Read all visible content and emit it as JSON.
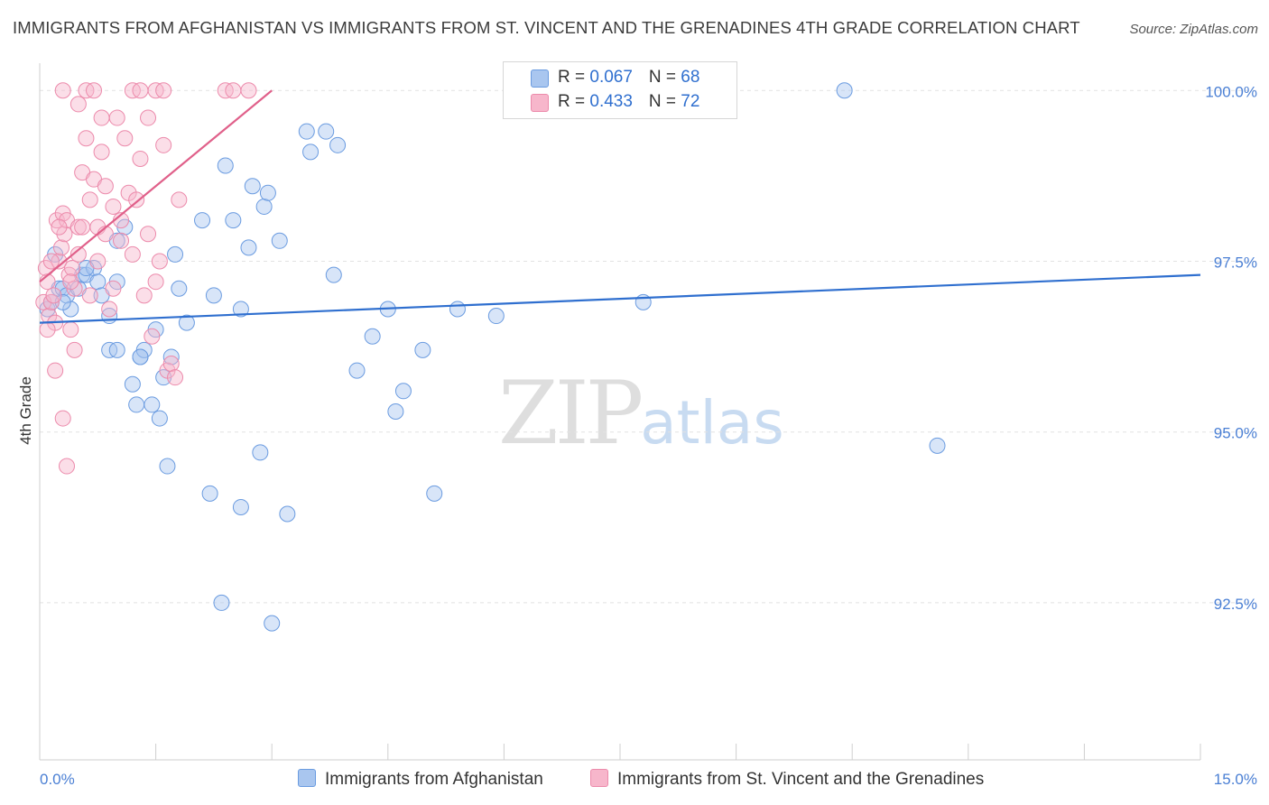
{
  "title": "IMMIGRANTS FROM AFGHANISTAN VS IMMIGRANTS FROM ST. VINCENT AND THE GRENADINES 4TH GRADE CORRELATION CHART",
  "source": "Source: ZipAtlas.com",
  "watermark": {
    "zip": "ZIP",
    "atlas": "atlas"
  },
  "legend": {
    "rows": [
      {
        "r_label": "R = ",
        "r_value": "0.067",
        "n_label": "N = ",
        "n_value": "68"
      },
      {
        "r_label": "R = ",
        "r_value": "0.433",
        "n_label": "N = ",
        "n_value": "72"
      }
    ]
  },
  "bottom_legend": {
    "series1": "Immigrants from Afghanistan",
    "series2": "Immigrants from St. Vincent and the Grenadines"
  },
  "colors": {
    "blue_fill": "#a9c6ef",
    "blue_stroke": "#6a9be0",
    "blue_line": "#2f6fcf",
    "pink_fill": "#f7b6cb",
    "pink_stroke": "#ec8aab",
    "pink_line": "#e0608a",
    "grid": "#e2e2e2"
  },
  "chart_data": {
    "type": "scatter",
    "title": "IMMIGRANTS FROM AFGHANISTAN VS IMMIGRANTS FROM ST. VINCENT AND THE GRENADINES 4TH GRADE CORRELATION CHART",
    "xlabel": "",
    "ylabel": "4th Grade",
    "xlim": [
      0,
      15
    ],
    "ylim": [
      90.2,
      100.4
    ],
    "x_tick_labels": [
      "0.0%",
      "15.0%"
    ],
    "y_ticks": [
      92.5,
      95.0,
      97.5,
      100.0
    ],
    "y_tick_labels": [
      "92.5%",
      "95.0%",
      "97.5%",
      "100.0%"
    ],
    "grid": true,
    "legend_position": "top-center",
    "series": [
      {
        "name": "Immigrants from Afghanistan",
        "color": "#a9c6ef",
        "trend": {
          "x": [
            0,
            15
          ],
          "y": [
            96.6,
            97.3
          ]
        },
        "points": [
          [
            0.1,
            96.8
          ],
          [
            0.15,
            96.9
          ],
          [
            0.2,
            97.6
          ],
          [
            0.25,
            97.1
          ],
          [
            0.3,
            97.1
          ],
          [
            0.35,
            97.0
          ],
          [
            0.4,
            96.8
          ],
          [
            0.5,
            97.1
          ],
          [
            0.55,
            97.3
          ],
          [
            0.6,
            97.3
          ],
          [
            0.7,
            97.4
          ],
          [
            0.75,
            97.2
          ],
          [
            0.8,
            97.0
          ],
          [
            1.0,
            97.8
          ],
          [
            1.1,
            98.0
          ],
          [
            0.9,
            96.2
          ],
          [
            1.0,
            96.2
          ],
          [
            1.2,
            95.7
          ],
          [
            1.25,
            95.4
          ],
          [
            1.3,
            96.1
          ],
          [
            1.35,
            96.2
          ],
          [
            1.45,
            95.4
          ],
          [
            1.5,
            96.5
          ],
          [
            1.55,
            95.2
          ],
          [
            1.6,
            95.8
          ],
          [
            1.65,
            94.5
          ],
          [
            1.7,
            96.1
          ],
          [
            1.75,
            97.6
          ],
          [
            1.8,
            97.1
          ],
          [
            1.9,
            96.6
          ],
          [
            2.1,
            98.1
          ],
          [
            2.2,
            94.1
          ],
          [
            2.25,
            97.0
          ],
          [
            2.4,
            98.9
          ],
          [
            2.5,
            98.1
          ],
          [
            2.6,
            96.8
          ],
          [
            2.7,
            97.7
          ],
          [
            2.75,
            98.6
          ],
          [
            2.9,
            98.3
          ],
          [
            2.95,
            98.5
          ],
          [
            3.1,
            97.8
          ],
          [
            3.2,
            93.8
          ],
          [
            3.45,
            99.4
          ],
          [
            3.5,
            99.1
          ],
          [
            3.7,
            99.4
          ],
          [
            3.85,
            99.2
          ],
          [
            3.8,
            97.3
          ],
          [
            4.1,
            95.9
          ],
          [
            4.3,
            96.4
          ],
          [
            4.5,
            96.8
          ],
          [
            4.7,
            95.6
          ],
          [
            4.95,
            96.2
          ],
          [
            5.4,
            96.8
          ],
          [
            5.9,
            96.7
          ],
          [
            7.8,
            96.9
          ],
          [
            10.4,
            100.0
          ],
          [
            11.6,
            94.8
          ],
          [
            2.35,
            92.5
          ],
          [
            3.0,
            92.2
          ],
          [
            2.6,
            93.9
          ],
          [
            2.85,
            94.7
          ],
          [
            4.6,
            95.3
          ],
          [
            5.1,
            94.1
          ],
          [
            1.3,
            96.1
          ],
          [
            0.3,
            96.9
          ],
          [
            0.6,
            97.4
          ],
          [
            0.9,
            96.7
          ],
          [
            1.0,
            97.2
          ]
        ]
      },
      {
        "name": "Immigrants from St. Vincent and the Grenadines",
        "color": "#f7b6cb",
        "trend": {
          "x": [
            0,
            3.0
          ],
          "y": [
            97.2,
            100.0
          ]
        },
        "points": [
          [
            0.05,
            96.9
          ],
          [
            0.08,
            97.4
          ],
          [
            0.1,
            97.2
          ],
          [
            0.12,
            96.7
          ],
          [
            0.15,
            96.9
          ],
          [
            0.18,
            97.0
          ],
          [
            0.2,
            96.6
          ],
          [
            0.22,
            98.1
          ],
          [
            0.25,
            97.5
          ],
          [
            0.28,
            97.7
          ],
          [
            0.3,
            98.2
          ],
          [
            0.32,
            97.9
          ],
          [
            0.35,
            98.1
          ],
          [
            0.38,
            97.3
          ],
          [
            0.4,
            96.5
          ],
          [
            0.42,
            97.4
          ],
          [
            0.45,
            97.1
          ],
          [
            0.5,
            98.0
          ],
          [
            0.55,
            98.8
          ],
          [
            0.6,
            99.3
          ],
          [
            0.65,
            98.4
          ],
          [
            0.7,
            98.7
          ],
          [
            0.75,
            98.0
          ],
          [
            0.8,
            99.1
          ],
          [
            0.85,
            98.6
          ],
          [
            0.9,
            96.8
          ],
          [
            0.95,
            97.1
          ],
          [
            1.0,
            99.6
          ],
          [
            1.05,
            98.1
          ],
          [
            1.1,
            99.3
          ],
          [
            1.15,
            98.5
          ],
          [
            1.2,
            97.6
          ],
          [
            1.25,
            98.4
          ],
          [
            1.3,
            99.0
          ],
          [
            1.35,
            97.0
          ],
          [
            1.4,
            97.9
          ],
          [
            1.45,
            96.4
          ],
          [
            1.5,
            97.2
          ],
          [
            1.55,
            97.5
          ],
          [
            1.6,
            99.2
          ],
          [
            1.65,
            95.9
          ],
          [
            1.7,
            96.0
          ],
          [
            1.75,
            95.8
          ],
          [
            1.8,
            98.4
          ],
          [
            0.3,
            100.0
          ],
          [
            0.5,
            99.8
          ],
          [
            0.6,
            100.0
          ],
          [
            0.7,
            100.0
          ],
          [
            0.8,
            99.6
          ],
          [
            1.2,
            100.0
          ],
          [
            1.3,
            100.0
          ],
          [
            1.4,
            99.6
          ],
          [
            1.5,
            100.0
          ],
          [
            1.6,
            100.0
          ],
          [
            2.4,
            100.0
          ],
          [
            2.5,
            100.0
          ],
          [
            2.7,
            100.0
          ],
          [
            0.2,
            95.9
          ],
          [
            0.3,
            95.2
          ],
          [
            0.35,
            94.5
          ],
          [
            0.45,
            96.2
          ],
          [
            0.1,
            96.5
          ],
          [
            0.15,
            97.5
          ],
          [
            0.25,
            98.0
          ],
          [
            0.4,
            97.2
          ],
          [
            0.5,
            97.6
          ],
          [
            0.55,
            98.0
          ],
          [
            0.65,
            97.0
          ],
          [
            0.75,
            97.5
          ],
          [
            0.85,
            97.9
          ],
          [
            0.95,
            98.3
          ],
          [
            1.05,
            97.8
          ]
        ]
      }
    ]
  }
}
